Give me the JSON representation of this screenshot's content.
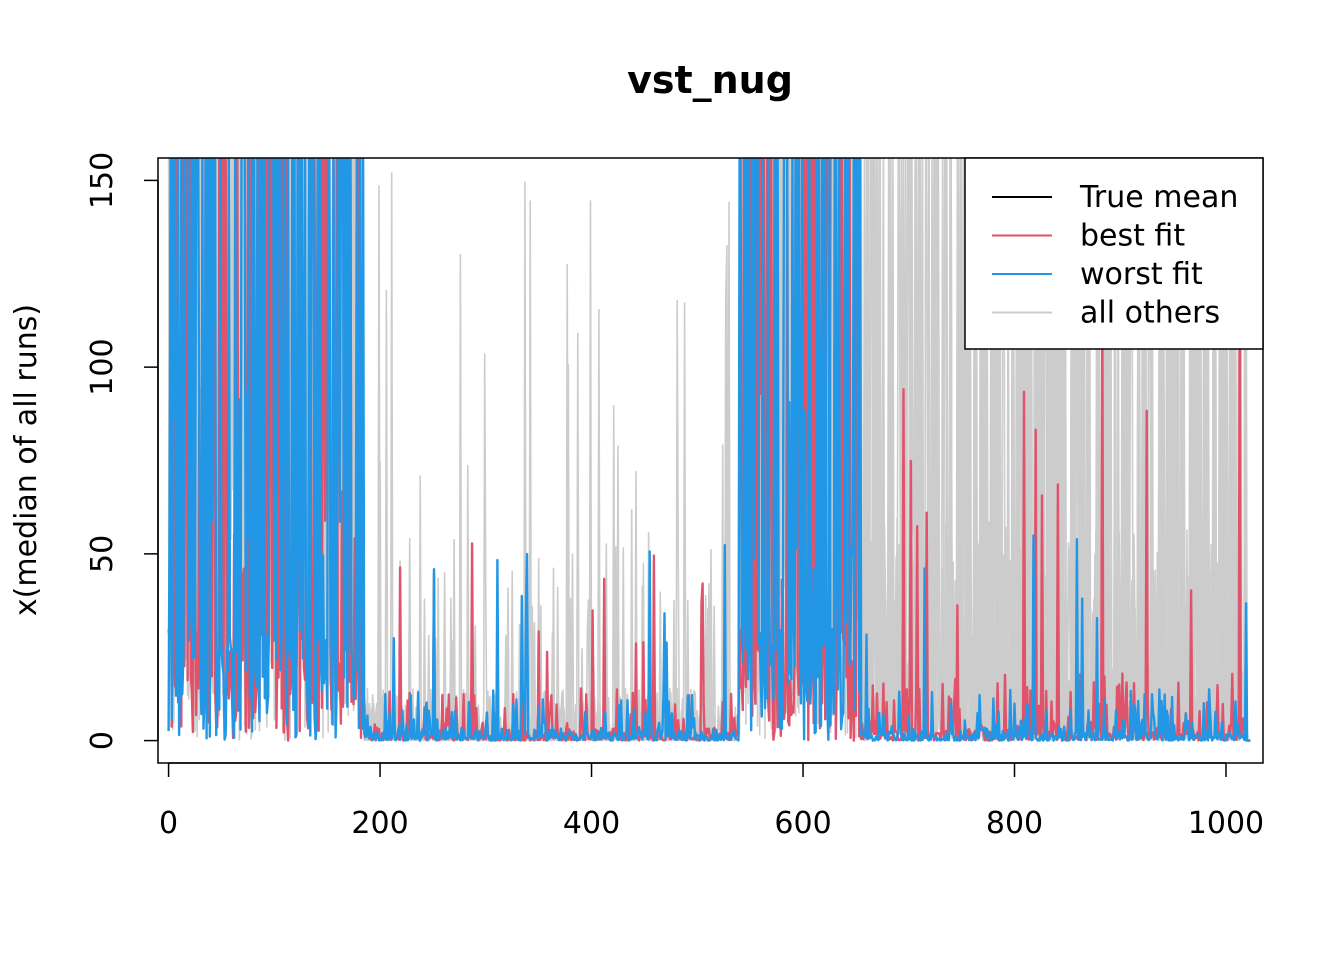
{
  "chart_data": {
    "type": "line",
    "title": "vst_nug",
    "xlabel": "",
    "ylabel": "x(median of all runs)",
    "xlim": [
      -10,
      1035
    ],
    "ylim": [
      -6,
      156
    ],
    "x_ticks": [
      0,
      200,
      400,
      600,
      800,
      1000
    ],
    "y_ticks": [
      0,
      50,
      100,
      150
    ],
    "n_points": 1024,
    "grid": false,
    "legend": {
      "position": "top-right",
      "entries": [
        {
          "label": "True mean",
          "color": "#000000"
        },
        {
          "label": "best fit",
          "color": "#df536b"
        },
        {
          "label": "worst fit",
          "color": "#2297e6"
        },
        {
          "label": "all others",
          "color": "#cccccc"
        }
      ]
    },
    "series": [
      {
        "name": "all others",
        "color": "#cccccc",
        "segments": [
          {
            "x_start": 0,
            "x_end": 185,
            "level": "saturated",
            "approx_range": [
              0,
              156
            ]
          },
          {
            "x_start": 185,
            "x_end": 540,
            "level": "low",
            "approx_range": [
              0,
              55
            ],
            "occasional_spikes_to": 156
          },
          {
            "x_start": 540,
            "x_end": 655,
            "level": "saturated",
            "approx_range": [
              0,
              156
            ]
          },
          {
            "x_start": 655,
            "x_end": 1020,
            "level": "medium",
            "approx_range": [
              0,
              156
            ]
          }
        ]
      },
      {
        "name": "best fit",
        "color": "#df536b",
        "segments": [
          {
            "x_start": 0,
            "x_end": 185,
            "level": "high",
            "approx_range": [
              0,
              156
            ]
          },
          {
            "x_start": 185,
            "x_end": 540,
            "level": "low",
            "approx_range": [
              0,
              37
            ]
          },
          {
            "x_start": 540,
            "x_end": 655,
            "level": "high",
            "approx_range": [
              0,
              156
            ]
          },
          {
            "x_start": 655,
            "x_end": 1020,
            "level": "low-medium",
            "approx_range": [
              0,
              100
            ]
          }
        ]
      },
      {
        "name": "worst fit",
        "color": "#2297e6",
        "segments": [
          {
            "x_start": 0,
            "x_end": 185,
            "level": "high",
            "approx_range": [
              0,
              156
            ]
          },
          {
            "x_start": 185,
            "x_end": 540,
            "level": "low",
            "approx_range": [
              0,
              56
            ]
          },
          {
            "x_start": 540,
            "x_end": 655,
            "level": "high",
            "approx_range": [
              0,
              156
            ]
          },
          {
            "x_start": 655,
            "x_end": 1020,
            "level": "low",
            "approx_range": [
              0,
              130
            ]
          }
        ]
      },
      {
        "name": "True mean",
        "color": "#000000",
        "segments": []
      }
    ]
  }
}
